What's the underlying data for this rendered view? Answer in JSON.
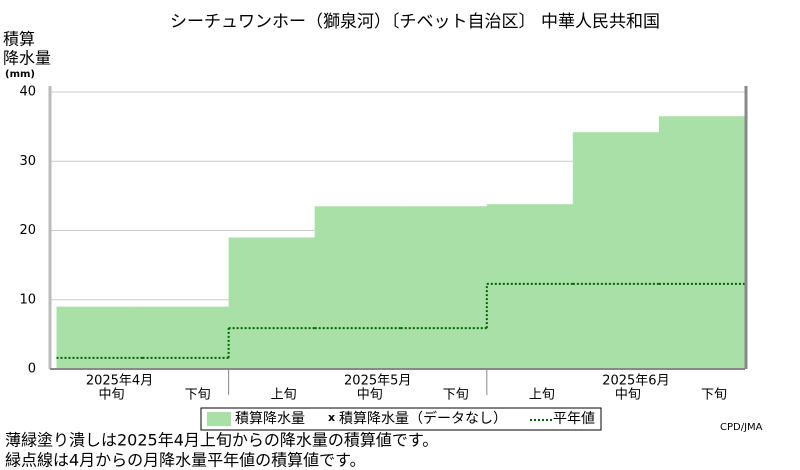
{
  "chart_data": {
    "type": "step-area",
    "title": "シーチュワンホー（獅泉河）〔チベット自治区〕 中華人民共和国",
    "y_label": [
      "積算",
      "降水量",
      "(mm)"
    ],
    "month_labels": [
      "2025年4月",
      "2025年5月",
      "2025年6月"
    ],
    "categories": [
      "中旬",
      "下旬",
      "上旬",
      "中旬",
      "下旬",
      "上旬",
      "中旬",
      "下旬"
    ],
    "series": [
      {
        "name": "積算降水量",
        "color": "#a8e0a8",
        "values": [
          9.0,
          9.0,
          19.0,
          23.5,
          23.5,
          23.8,
          34.2,
          36.5
        ]
      },
      {
        "name": "平年値",
        "color": "#006400",
        "values": [
          1.6,
          1.6,
          5.9,
          5.9,
          5.9,
          12.3,
          12.3,
          12.3
        ]
      }
    ],
    "nodata_label": "積算降水量（データなし）",
    "ylim": [
      0,
      40
    ],
    "yticks": [
      0,
      10,
      20,
      30,
      40
    ],
    "grid": true,
    "credit": "CPD/JMA",
    "notes": [
      "薄緑塗り潰しは2025年4月上旬からの降水量の積算値です。",
      "緑点線は4月からの月降水量平年値の積算値です。"
    ]
  }
}
